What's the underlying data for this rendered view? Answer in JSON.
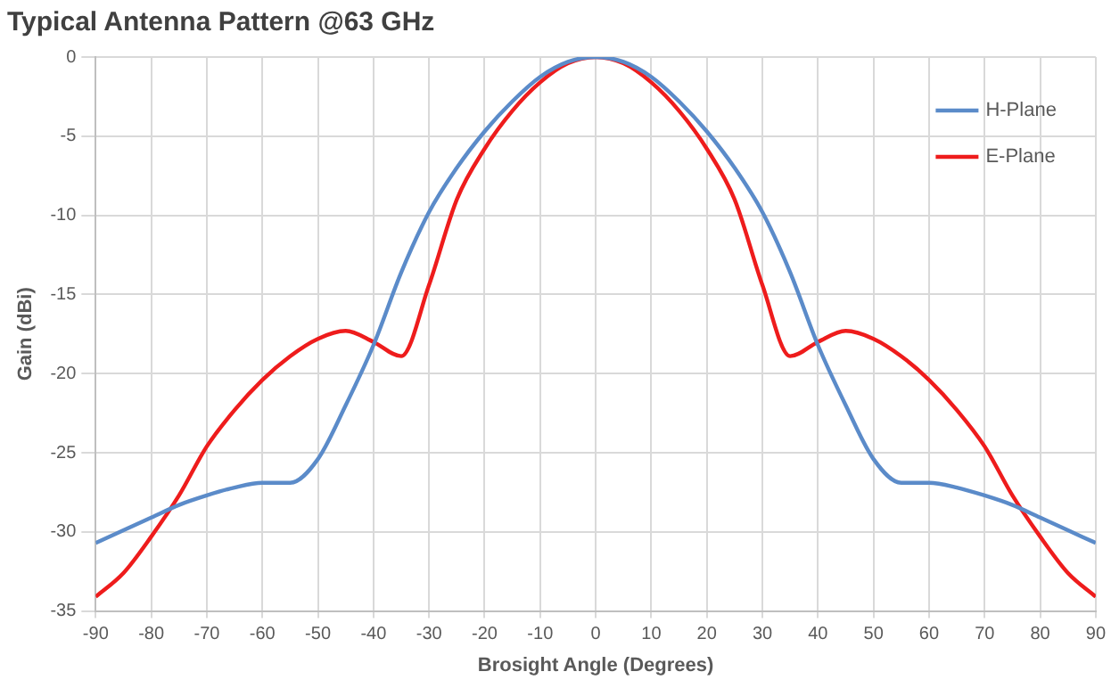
{
  "chart_data": {
    "type": "line",
    "title": "Typical Antenna Pattern @63 GHz",
    "xlabel": "Brosight Angle (Degrees)",
    "ylabel": "Gain (dBi)",
    "x": [
      -90,
      -85,
      -80,
      -75,
      -70,
      -65,
      -60,
      -55,
      -50,
      -45,
      -40,
      -35,
      -30,
      -25,
      -20,
      -15,
      -10,
      -5,
      0,
      5,
      10,
      15,
      20,
      25,
      30,
      35,
      40,
      45,
      50,
      55,
      60,
      65,
      70,
      75,
      80,
      85,
      90
    ],
    "series": [
      {
        "name": "H-Plane",
        "color": "#5b8bc9",
        "values": [
          -30.7,
          -29.9,
          -29.1,
          -28.3,
          -27.7,
          -27.2,
          -26.9,
          -26.9,
          -25.4,
          -22,
          -18.2,
          -13.6,
          -9.8,
          -7,
          -4.7,
          -2.8,
          -1.25,
          -0.3,
          0,
          -0.3,
          -1.25,
          -2.8,
          -4.7,
          -7,
          -9.8,
          -13.6,
          -18.2,
          -22,
          -25.4,
          -26.9,
          -26.9,
          -27.2,
          -27.7,
          -28.3,
          -29.1,
          -29.9,
          -30.7
        ]
      },
      {
        "name": "E-Plane",
        "color": "#ee1c1c",
        "values": [
          -34.1,
          -32.6,
          -30.3,
          -27.7,
          -24.6,
          -22.3,
          -20.4,
          -18.9,
          -17.8,
          -17.3,
          -18,
          -18.9,
          -14.4,
          -9,
          -5.8,
          -3.4,
          -1.6,
          -0.4,
          0,
          -0.4,
          -1.6,
          -3.4,
          -5.8,
          -9,
          -14.4,
          -18.9,
          -18,
          -17.3,
          -17.8,
          -18.9,
          -20.4,
          -22.3,
          -24.6,
          -27.7,
          -30.3,
          -32.6,
          -34.1
        ]
      }
    ],
    "xlim": [
      -90,
      90
    ],
    "xticks": [
      -90,
      -80,
      -70,
      -60,
      -50,
      -40,
      -30,
      -20,
      -10,
      0,
      10,
      20,
      30,
      40,
      50,
      60,
      70,
      80,
      90
    ],
    "ylim": [
      -35,
      0
    ],
    "yticks": [
      -35,
      -30,
      -25,
      -20,
      -15,
      -10,
      -5,
      0
    ],
    "grid": true,
    "legend": "top right",
    "marker": "none",
    "line_style": "solid"
  }
}
